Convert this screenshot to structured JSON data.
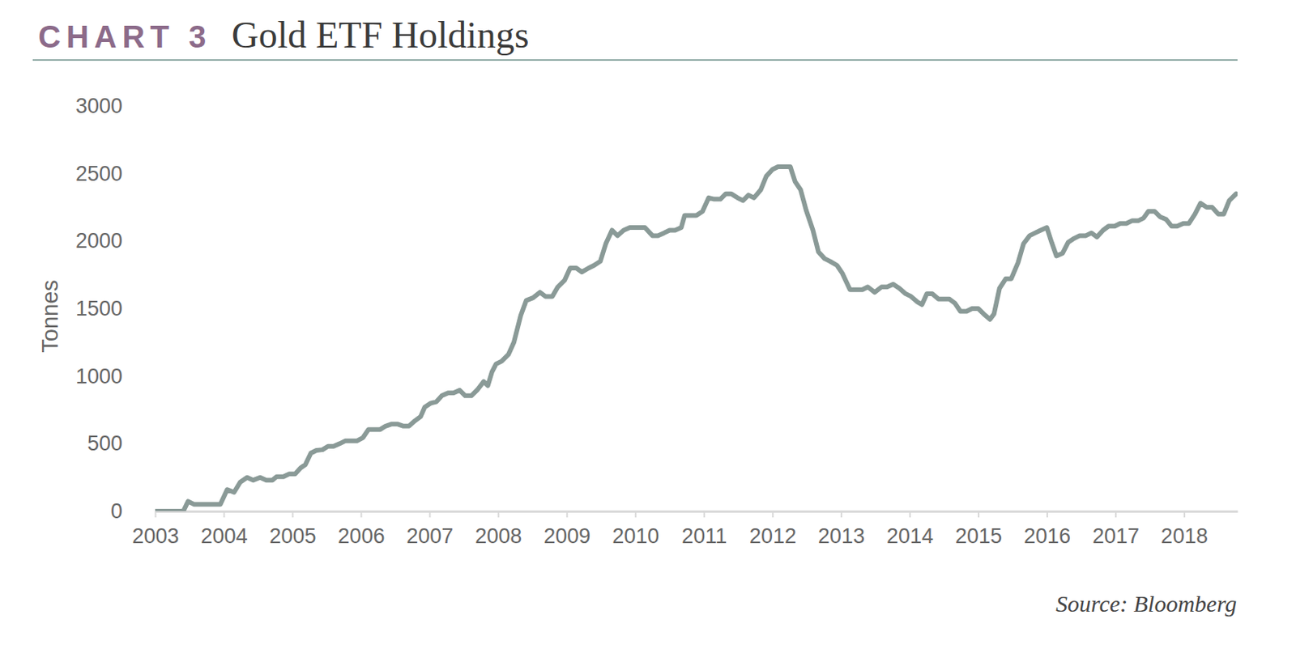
{
  "chart_data": {
    "type": "line",
    "chart_number": "CHART 3",
    "title": "Gold ETF Holdings",
    "y_label": "Tonnes",
    "source": "Source: Bloomberg",
    "color": "#8a9a97",
    "grid": false,
    "x": [
      2003.0,
      2003.41,
      2003.48,
      2003.57,
      2003.95,
      2004.05,
      2004.15,
      2004.24,
      2004.34,
      2004.43,
      2004.53,
      2004.62,
      2004.71,
      2004.77,
      2004.87,
      2004.95,
      2005.04,
      2005.12,
      2005.19,
      2005.27,
      2005.35,
      2005.44,
      2005.52,
      2005.6,
      2005.69,
      2005.77,
      2005.86,
      2005.94,
      2006.03,
      2006.11,
      2006.2,
      2006.28,
      2006.36,
      2006.45,
      2006.53,
      2006.62,
      2006.7,
      2006.79,
      2006.87,
      2006.93,
      2007.02,
      2007.1,
      2007.18,
      2007.27,
      2007.35,
      2007.44,
      2007.52,
      2007.61,
      2007.7,
      2007.79,
      2007.85,
      2007.91,
      2007.97,
      2008.05,
      2008.15,
      2008.23,
      2008.33,
      2008.41,
      2008.51,
      2008.61,
      2008.69,
      2008.79,
      2008.87,
      2008.97,
      2009.05,
      2009.14,
      2009.22,
      2009.32,
      2009.4,
      2009.49,
      2009.57,
      2009.66,
      2009.74,
      2009.83,
      2009.92,
      2010.02,
      2010.14,
      2010.25,
      2010.33,
      2010.42,
      2010.5,
      2010.58,
      2010.67,
      2010.72,
      2010.89,
      2010.98,
      2011.07,
      2011.15,
      2011.24,
      2011.32,
      2011.4,
      2011.49,
      2011.57,
      2011.65,
      2011.73,
      2011.83,
      2011.91,
      2012.0,
      2012.08,
      2012.16,
      2012.26,
      2012.33,
      2012.41,
      2012.49,
      2012.59,
      2012.67,
      2012.76,
      2012.84,
      2012.94,
      2013.02,
      2013.13,
      2013.23,
      2013.31,
      2013.39,
      2013.49,
      2013.59,
      2013.67,
      2013.76,
      2013.85,
      2013.94,
      2014.02,
      2014.11,
      2014.18,
      2014.25,
      2014.33,
      2014.42,
      2014.5,
      2014.58,
      2014.66,
      2014.74,
      2014.83,
      2014.91,
      2015.0,
      2015.08,
      2015.17,
      2015.23,
      2015.31,
      2015.4,
      2015.48,
      2015.58,
      2015.66,
      2015.75,
      2015.83,
      2015.91,
      2016.0,
      2016.07,
      2016.14,
      2016.23,
      2016.31,
      2016.4,
      2016.48,
      2016.57,
      2016.65,
      2016.73,
      2016.82,
      2016.9,
      2016.99,
      2017.07,
      2017.16,
      2017.24,
      2017.33,
      2017.41,
      2017.48,
      2017.57,
      2017.65,
      2017.74,
      2017.82,
      2017.9,
      2017.99,
      2018.07,
      2018.16,
      2018.24,
      2018.33,
      2018.41,
      2018.5,
      2018.58,
      2018.66,
      2018.76
    ],
    "values": [
      0,
      0,
      73,
      50,
      50,
      160,
      140,
      215,
      250,
      230,
      250,
      230,
      230,
      255,
      255,
      275,
      275,
      320,
      345,
      430,
      450,
      455,
      480,
      480,
      500,
      520,
      520,
      520,
      545,
      605,
      605,
      605,
      630,
      645,
      645,
      630,
      630,
      670,
      700,
      770,
      800,
      810,
      855,
      875,
      875,
      895,
      855,
      855,
      900,
      960,
      930,
      1030,
      1090,
      1110,
      1160,
      1250,
      1450,
      1560,
      1580,
      1620,
      1590,
      1590,
      1660,
      1710,
      1800,
      1800,
      1770,
      1800,
      1820,
      1850,
      1980,
      2080,
      2040,
      2080,
      2100,
      2100,
      2100,
      2040,
      2040,
      2060,
      2080,
      2080,
      2100,
      2190,
      2190,
      2220,
      2320,
      2310,
      2310,
      2350,
      2350,
      2320,
      2300,
      2340,
      2320,
      2380,
      2480,
      2530,
      2550,
      2550,
      2550,
      2440,
      2380,
      2230,
      2080,
      1920,
      1870,
      1850,
      1820,
      1760,
      1640,
      1640,
      1640,
      1660,
      1620,
      1660,
      1660,
      1680,
      1650,
      1610,
      1590,
      1550,
      1530,
      1610,
      1610,
      1570,
      1570,
      1570,
      1540,
      1480,
      1480,
      1500,
      1500,
      1460,
      1420,
      1460,
      1650,
      1720,
      1720,
      1840,
      1980,
      2040,
      2060,
      2080,
      2100,
      1990,
      1890,
      1910,
      1990,
      2020,
      2040,
      2040,
      2060,
      2030,
      2080,
      2110,
      2110,
      2130,
      2130,
      2150,
      2150,
      2170,
      2220,
      2220,
      2180,
      2160,
      2110,
      2110,
      2130,
      2130,
      2200,
      2280,
      2250,
      2250,
      2200,
      2200,
      2300,
      2350
    ],
    "xlim": [
      2003,
      2018.78
    ],
    "xticks": [
      2003,
      2004,
      2005,
      2006,
      2007,
      2008,
      2009,
      2010,
      2011,
      2012,
      2013,
      2014,
      2015,
      2016,
      2017,
      2018
    ],
    "ylim": [
      0,
      3000
    ],
    "yticks": [
      0,
      500,
      1000,
      1500,
      2000,
      2500,
      3000
    ]
  }
}
